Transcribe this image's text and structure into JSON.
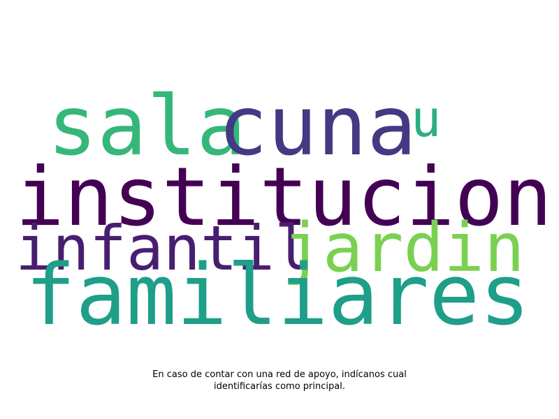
{
  "word_cloud": {
    "words": [
      {
        "text": "sala",
        "color": "#35b779"
      },
      {
        "text": "cuna",
        "color": "#443983"
      },
      {
        "text": "u",
        "color": "#2ab07f"
      },
      {
        "text": "institucion",
        "color": "#440154"
      },
      {
        "text": "infantil",
        "color": "#481f70"
      },
      {
        "text": "jardin",
        "color": "#7ad151"
      },
      {
        "text": "familiares",
        "color": "#1f9e89"
      }
    ]
  },
  "caption": {
    "line1": "En caso de contar con una red de apoyo, indícanos cual",
    "line2": "identificarías como principal."
  }
}
